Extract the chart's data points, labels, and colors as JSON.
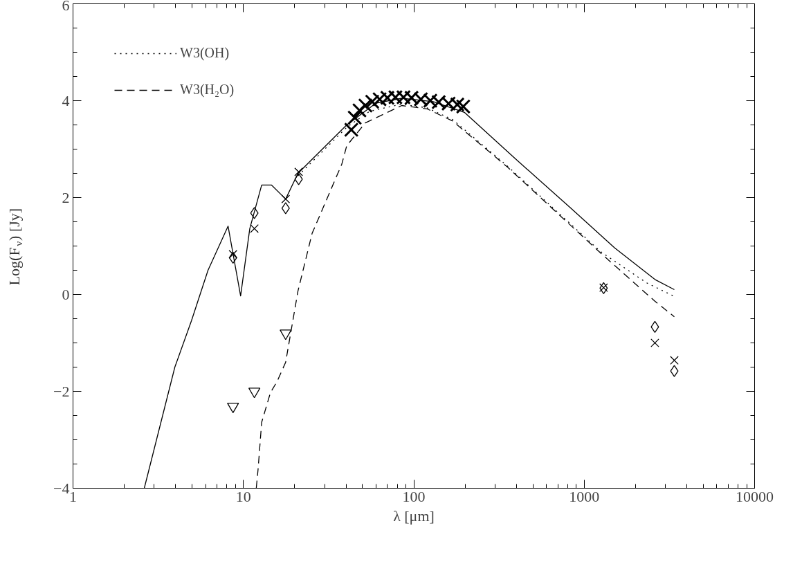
{
  "chart_data": {
    "type": "line",
    "xlabel": "λ [μm]",
    "ylabel": "Log(F$_{ν}$) [Jy]",
    "log": "x",
    "xlim": [
      1,
      10000
    ],
    "xticks": [
      1,
      10,
      100,
      1000,
      10000
    ],
    "ylim": [
      -4,
      6
    ],
    "yticks": [
      -4,
      -2,
      0,
      2,
      4,
      6
    ],
    "grid": false,
    "legend": "top left",
    "series": [
      {
        "color": "#000000",
        "line_style": "solid",
        "x": [
          2.62,
          3.96,
          4.96,
          6.2,
          8.13,
          9.63,
          10.9,
          12.8,
          14.6,
          17.7,
          20.9,
          40.4,
          60,
          85,
          130,
          198,
          392,
          830,
          1510,
          2600,
          3380
        ],
        "values": [
          -4,
          -1.5,
          -0.54,
          0.5,
          1.41,
          -0.03,
          1.36,
          2.26,
          2.26,
          1.97,
          2.5,
          3.5,
          3.95,
          4.05,
          3.98,
          3.76,
          2.81,
          1.79,
          0.96,
          0.31,
          0.1
        ]
      },
      {
        "name": "W3(OH)",
        "color": "#000000",
        "line_style": "dotted",
        "x": [
          20.9,
          40.4,
          55,
          85,
          120,
          169,
          357,
          1253,
          2323,
          3380
        ],
        "values": [
          2.45,
          3.45,
          3.78,
          3.93,
          3.85,
          3.61,
          2.64,
          0.88,
          0.24,
          -0.04
        ]
      },
      {
        "name": "W3(H₂O)",
        "color": "#000000",
        "line_style": "dashed",
        "x": [
          11.9,
          12.2,
          12.8,
          14.4,
          15.8,
          17.7,
          20.9,
          25.3,
          37.8,
          40.4,
          51.9,
          85,
          120,
          169,
          357,
          1253,
          2600,
          3380
        ],
        "values": [
          -4,
          -3.6,
          -2.64,
          -2.03,
          -1.79,
          -1.4,
          0.07,
          1.26,
          2.69,
          3.07,
          3.54,
          3.9,
          3.83,
          3.58,
          2.62,
          0.85,
          -0.14,
          -0.46
        ]
      },
      {
        "type": "scatter",
        "marker": "cross",
        "color": "#000000",
        "x": [
          8.69,
          11.6,
          17.7,
          21.1,
          1300,
          2600,
          3380
        ],
        "values": [
          0.83,
          1.36,
          1.97,
          2.53,
          0.14,
          -1.0,
          -1.36
        ]
      },
      {
        "type": "scatter",
        "marker": "diamond",
        "color": "#000000",
        "x": [
          8.69,
          11.6,
          17.7,
          21.1,
          1300,
          2600,
          3380
        ],
        "values": [
          0.76,
          1.68,
          1.78,
          2.38,
          0.13,
          -0.67,
          -1.58
        ]
      },
      {
        "type": "scatter",
        "marker": "triangle",
        "color": "#000000",
        "x": [
          8.69,
          11.6,
          17.7
        ],
        "values": [
          -2.31,
          -2.0,
          -0.8
        ]
      },
      {
        "type": "scatter",
        "marker": "cross",
        "color": "#000000",
        "x": [
          43,
          45,
          48,
          52,
          57,
          63,
          70,
          78,
          87,
          97,
          110,
          125,
          140,
          160,
          180,
          195
        ],
        "values": [
          3.4,
          3.65,
          3.8,
          3.9,
          3.98,
          4.03,
          4.06,
          4.07,
          4.07,
          4.06,
          4.03,
          4.0,
          3.97,
          3.94,
          3.92,
          3.88
        ]
      }
    ]
  }
}
